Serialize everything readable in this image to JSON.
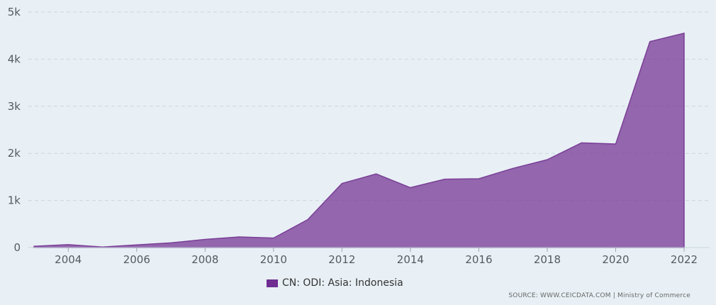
{
  "colors": {
    "area_fill": "#7b3f98",
    "area_stroke": "#7b3f98",
    "legend_swatch": "#6f2c91",
    "grid": "#c9d6dc",
    "background": "#e8f0f5"
  },
  "legend": {
    "label": "CN: ODI: Asia: Indonesia"
  },
  "source": {
    "text": "SOURCE: WWW.CEICDATA.COM | Ministry of Commerce"
  },
  "chart_data": {
    "type": "area",
    "x": [
      2003,
      2004,
      2005,
      2006,
      2007,
      2008,
      2009,
      2010,
      2011,
      2012,
      2013,
      2014,
      2015,
      2016,
      2017,
      2018,
      2019,
      2020,
      2021,
      2022
    ],
    "series": [
      {
        "name": "CN: ODI: Asia: Indonesia",
        "values": [
          27,
          62,
          12,
          57,
          99,
          174,
          226,
          201,
          592,
          1361,
          1563,
          1272,
          1451,
          1461,
          1682,
          1865,
          2223,
          2198,
          4373,
          4551
        ]
      }
    ],
    "ylim": [
      0,
      5000
    ],
    "yticks": [
      0,
      1000,
      2000,
      3000,
      4000,
      5000
    ],
    "ytick_labels": [
      "0",
      "1k",
      "2k",
      "3k",
      "4k",
      "5k"
    ],
    "xticks": [
      2004,
      2006,
      2008,
      2010,
      2012,
      2014,
      2016,
      2018,
      2020,
      2022
    ],
    "xtick_labels": [
      "2004",
      "2006",
      "2008",
      "2010",
      "2012",
      "2014",
      "2016",
      "2018",
      "2020",
      "2022"
    ],
    "grid": true,
    "legend_position": "bottom-center"
  }
}
